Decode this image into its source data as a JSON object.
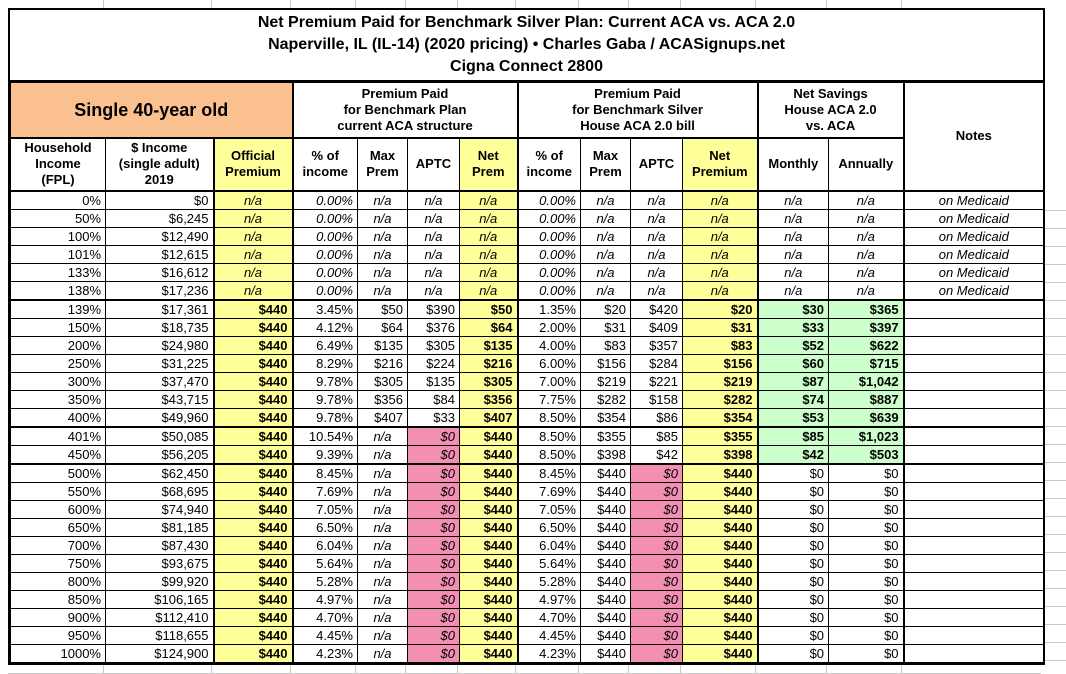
{
  "title": {
    "line1": "Net Premium Paid for Benchmark Silver Plan: Current ACA vs. ACA 2.0",
    "line2": "Naperville, IL (IL-14) (2020 pricing) • Charles Gaba / ACASignups.net",
    "line3": "Cigna Connect 2800"
  },
  "colors": {
    "highlight_yellow": "#FFFF99",
    "highlight_pink": "#F48FB4",
    "highlight_green": "#CCFFCC",
    "header_orange": "#FAC090"
  },
  "table": {
    "group_headers": {
      "subject": "Single 40-year old",
      "current_aca": "Premium Paid\nfor Benchmark Plan\ncurrent ACA structure",
      "aca_20": "Premium Paid\nfor Benchmark Silver\nHouse ACA 2.0 bill",
      "net_savings": "Net Savings\nHouse ACA 2.0\nvs. ACA",
      "notes": "Notes"
    },
    "column_headers": [
      "Household\nIncome\n(FPL)",
      "$ Income\n(single adult)\n2019",
      "Official\nPremium",
      "% of\nincome",
      "Max\nPrem",
      "APTC",
      "Net\nPrem",
      "% of\nincome",
      "Max\nPrem",
      "APTC",
      "Net\nPremium",
      "Monthly",
      "Annually"
    ],
    "rows": [
      [
        "0%",
        "$0",
        "n/a",
        "0.00%",
        "n/a",
        "n/a",
        "n/a",
        "0.00%",
        "n/a",
        "n/a",
        "n/a",
        "n/a",
        "n/a",
        "on Medicaid"
      ],
      [
        "50%",
        "$6,245",
        "n/a",
        "0.00%",
        "n/a",
        "n/a",
        "n/a",
        "0.00%",
        "n/a",
        "n/a",
        "n/a",
        "n/a",
        "n/a",
        "on Medicaid"
      ],
      [
        "100%",
        "$12,490",
        "n/a",
        "0.00%",
        "n/a",
        "n/a",
        "n/a",
        "0.00%",
        "n/a",
        "n/a",
        "n/a",
        "n/a",
        "n/a",
        "on Medicaid"
      ],
      [
        "101%",
        "$12,615",
        "n/a",
        "0.00%",
        "n/a",
        "n/a",
        "n/a",
        "0.00%",
        "n/a",
        "n/a",
        "n/a",
        "n/a",
        "n/a",
        "on Medicaid"
      ],
      [
        "133%",
        "$16,612",
        "n/a",
        "0.00%",
        "n/a",
        "n/a",
        "n/a",
        "0.00%",
        "n/a",
        "n/a",
        "n/a",
        "n/a",
        "n/a",
        "on Medicaid"
      ],
      [
        "138%",
        "$17,236",
        "n/a",
        "0.00%",
        "n/a",
        "n/a",
        "n/a",
        "0.00%",
        "n/a",
        "n/a",
        "n/a",
        "n/a",
        "n/a",
        "on Medicaid"
      ],
      [
        "139%",
        "$17,361",
        "$440",
        "3.45%",
        "$50",
        "$390",
        "$50",
        "1.35%",
        "$20",
        "$420",
        "$20",
        "$30",
        "$365",
        ""
      ],
      [
        "150%",
        "$18,735",
        "$440",
        "4.12%",
        "$64",
        "$376",
        "$64",
        "2.00%",
        "$31",
        "$409",
        "$31",
        "$33",
        "$397",
        ""
      ],
      [
        "200%",
        "$24,980",
        "$440",
        "6.49%",
        "$135",
        "$305",
        "$135",
        "4.00%",
        "$83",
        "$357",
        "$83",
        "$52",
        "$622",
        ""
      ],
      [
        "250%",
        "$31,225",
        "$440",
        "8.29%",
        "$216",
        "$224",
        "$216",
        "6.00%",
        "$156",
        "$284",
        "$156",
        "$60",
        "$715",
        ""
      ],
      [
        "300%",
        "$37,470",
        "$440",
        "9.78%",
        "$305",
        "$135",
        "$305",
        "7.00%",
        "$219",
        "$221",
        "$219",
        "$87",
        "$1,042",
        ""
      ],
      [
        "350%",
        "$43,715",
        "$440",
        "9.78%",
        "$356",
        "$84",
        "$356",
        "7.75%",
        "$282",
        "$158",
        "$282",
        "$74",
        "$887",
        ""
      ],
      [
        "400%",
        "$49,960",
        "$440",
        "9.78%",
        "$407",
        "$33",
        "$407",
        "8.50%",
        "$354",
        "$86",
        "$354",
        "$53",
        "$639",
        ""
      ],
      [
        "401%",
        "$50,085",
        "$440",
        "10.54%",
        "n/a",
        "$0",
        "$440",
        "8.50%",
        "$355",
        "$85",
        "$355",
        "$85",
        "$1,023",
        ""
      ],
      [
        "450%",
        "$56,205",
        "$440",
        "9.39%",
        "n/a",
        "$0",
        "$440",
        "8.50%",
        "$398",
        "$42",
        "$398",
        "$42",
        "$503",
        ""
      ],
      [
        "500%",
        "$62,450",
        "$440",
        "8.45%",
        "n/a",
        "$0",
        "$440",
        "8.45%",
        "$440",
        "$0",
        "$440",
        "$0",
        "$0",
        ""
      ],
      [
        "550%",
        "$68,695",
        "$440",
        "7.69%",
        "n/a",
        "$0",
        "$440",
        "7.69%",
        "$440",
        "$0",
        "$440",
        "$0",
        "$0",
        ""
      ],
      [
        "600%",
        "$74,940",
        "$440",
        "7.05%",
        "n/a",
        "$0",
        "$440",
        "7.05%",
        "$440",
        "$0",
        "$440",
        "$0",
        "$0",
        ""
      ],
      [
        "650%",
        "$81,185",
        "$440",
        "6.50%",
        "n/a",
        "$0",
        "$440",
        "6.50%",
        "$440",
        "$0",
        "$440",
        "$0",
        "$0",
        ""
      ],
      [
        "700%",
        "$87,430",
        "$440",
        "6.04%",
        "n/a",
        "$0",
        "$440",
        "6.04%",
        "$440",
        "$0",
        "$440",
        "$0",
        "$0",
        ""
      ],
      [
        "750%",
        "$93,675",
        "$440",
        "5.64%",
        "n/a",
        "$0",
        "$440",
        "5.64%",
        "$440",
        "$0",
        "$440",
        "$0",
        "$0",
        ""
      ],
      [
        "800%",
        "$99,920",
        "$440",
        "5.28%",
        "n/a",
        "$0",
        "$440",
        "5.28%",
        "$440",
        "$0",
        "$440",
        "$0",
        "$0",
        ""
      ],
      [
        "850%",
        "$106,165",
        "$440",
        "4.97%",
        "n/a",
        "$0",
        "$440",
        "4.97%",
        "$440",
        "$0",
        "$440",
        "$0",
        "$0",
        ""
      ],
      [
        "900%",
        "$112,410",
        "$440",
        "4.70%",
        "n/a",
        "$0",
        "$440",
        "4.70%",
        "$440",
        "$0",
        "$440",
        "$0",
        "$0",
        ""
      ],
      [
        "950%",
        "$118,655",
        "$440",
        "4.45%",
        "n/a",
        "$0",
        "$440",
        "4.45%",
        "$440",
        "$0",
        "$440",
        "$0",
        "$0",
        ""
      ],
      [
        "1000%",
        "$124,900",
        "$440",
        "4.23%",
        "n/a",
        "$0",
        "$440",
        "4.23%",
        "$440",
        "$0",
        "$440",
        "$0",
        "$0",
        ""
      ]
    ]
  }
}
